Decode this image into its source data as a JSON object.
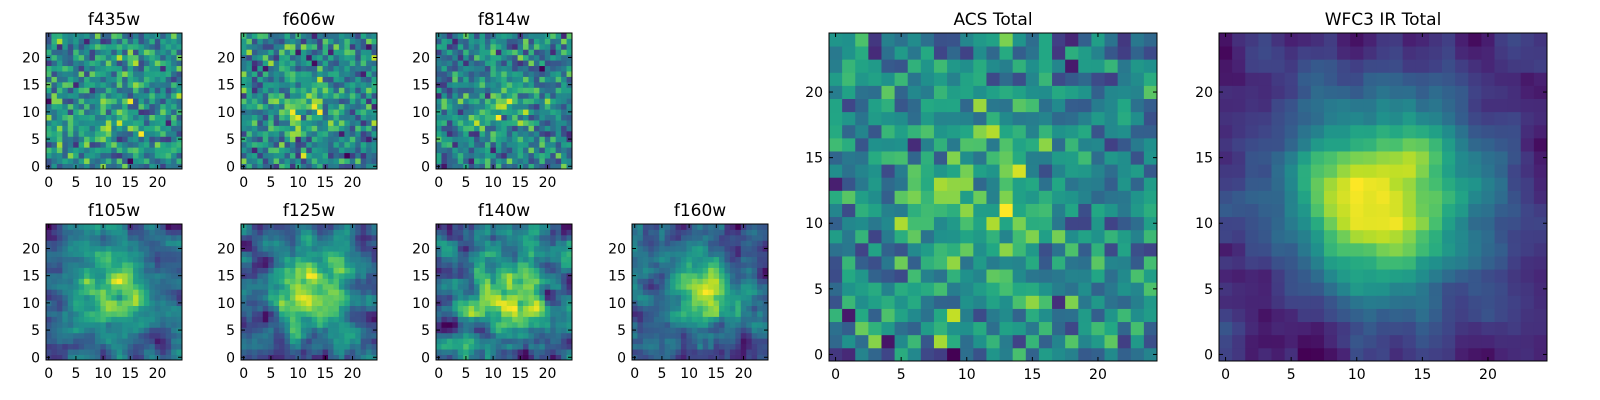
{
  "chart_data": [
    {
      "type": "heatmap",
      "title": "f435w",
      "xticks": [
        "0",
        "5",
        "10",
        "15",
        "20"
      ],
      "yticks": [
        "0",
        "5",
        "10",
        "15",
        "20"
      ],
      "xlim": [
        -0.5,
        24.5
      ],
      "ylim": [
        -0.5,
        24.5
      ],
      "grid": 25,
      "colormap": "viridis",
      "peak": [
        12,
        12
      ],
      "peak_width": 6,
      "peak_strength": 0.25,
      "noise": 1.0,
      "smooth": 0,
      "seed": 11
    },
    {
      "type": "heatmap",
      "title": "f606w",
      "xticks": [
        "0",
        "5",
        "10",
        "15",
        "20"
      ],
      "yticks": [
        "0",
        "5",
        "10",
        "15",
        "20"
      ],
      "xlim": [
        -0.5,
        24.5
      ],
      "ylim": [
        -0.5,
        24.5
      ],
      "grid": 25,
      "colormap": "viridis",
      "peak": [
        11,
        11
      ],
      "peak_width": 4,
      "peak_strength": 0.6,
      "noise": 1.0,
      "smooth": 0,
      "seed": 23
    },
    {
      "type": "heatmap",
      "title": "f814w",
      "xticks": [
        "0",
        "5",
        "10",
        "15",
        "20"
      ],
      "yticks": [
        "0",
        "5",
        "10",
        "15",
        "20"
      ],
      "xlim": [
        -0.5,
        24.5
      ],
      "ylim": [
        -0.5,
        24.5
      ],
      "grid": 25,
      "colormap": "viridis",
      "peak": [
        12,
        12
      ],
      "peak_width": 4,
      "peak_strength": 0.6,
      "noise": 1.0,
      "smooth": 0,
      "seed": 37
    },
    {
      "type": "heatmap",
      "title": "f105w",
      "xticks": [
        "0",
        "5",
        "10",
        "15",
        "20"
      ],
      "yticks": [
        "0",
        "5",
        "10",
        "15",
        "20"
      ],
      "xlim": [
        -0.5,
        24.5
      ],
      "ylim": [
        -0.5,
        24.5
      ],
      "grid": 25,
      "colormap": "viridis",
      "peak": [
        12,
        12
      ],
      "peak_width": 5,
      "peak_strength": 0.9,
      "noise": 1.0,
      "smooth": 1,
      "seed": 41
    },
    {
      "type": "heatmap",
      "title": "f125w",
      "xticks": [
        "0",
        "5",
        "10",
        "15",
        "20"
      ],
      "yticks": [
        "0",
        "5",
        "10",
        "15",
        "20"
      ],
      "xlim": [
        -0.5,
        24.5
      ],
      "ylim": [
        -0.5,
        24.5
      ],
      "grid": 25,
      "colormap": "viridis",
      "peak": [
        12,
        12
      ],
      "peak_width": 4.5,
      "peak_strength": 1.0,
      "noise": 1.0,
      "smooth": 1,
      "seed": 53
    },
    {
      "type": "heatmap",
      "title": "f140w",
      "xticks": [
        "0",
        "5",
        "10",
        "15",
        "20"
      ],
      "yticks": [
        "0",
        "5",
        "10",
        "15",
        "20"
      ],
      "xlim": [
        -0.5,
        24.5
      ],
      "ylim": [
        -0.5,
        24.5
      ],
      "grid": 25,
      "colormap": "viridis",
      "peak": [
        12,
        12
      ],
      "peak_width": 5,
      "peak_strength": 0.7,
      "noise": 1.0,
      "smooth": 1,
      "seed": 67
    },
    {
      "type": "heatmap",
      "title": "f160w",
      "xticks": [
        "0",
        "5",
        "10",
        "15",
        "20"
      ],
      "yticks": [
        "0",
        "5",
        "10",
        "15",
        "20"
      ],
      "xlim": [
        -0.5,
        24.5
      ],
      "ylim": [
        -0.5,
        24.5
      ],
      "grid": 25,
      "colormap": "viridis",
      "peak": [
        13,
        12
      ],
      "peak_width": 4,
      "peak_strength": 1.0,
      "noise": 1.0,
      "smooth": 1,
      "seed": 79
    },
    {
      "type": "heatmap",
      "title": "ACS Total",
      "xticks": [
        "0",
        "5",
        "10",
        "15",
        "20"
      ],
      "yticks": [
        "0",
        "5",
        "10",
        "15",
        "20"
      ],
      "xlim": [
        -0.5,
        24.5
      ],
      "ylim": [
        -0.5,
        24.5
      ],
      "grid": 25,
      "colormap": "viridis",
      "peak": [
        11,
        11
      ],
      "peak_width": 4,
      "peak_strength": 0.8,
      "noise": 1.0,
      "smooth": 0,
      "seed": 97
    },
    {
      "type": "heatmap",
      "title": "WFC3 IR Total",
      "xticks": [
        "0",
        "5",
        "10",
        "15",
        "20"
      ],
      "yticks": [
        "0",
        "5",
        "10",
        "15",
        "20"
      ],
      "xlim": [
        -0.5,
        24.5
      ],
      "ylim": [
        -0.5,
        24.5
      ],
      "grid": 25,
      "colormap": "viridis",
      "peak": [
        12,
        12
      ],
      "peak_width": 5,
      "peak_strength": 2.0,
      "noise": 0.6,
      "smooth": 1,
      "seed": 113
    }
  ]
}
